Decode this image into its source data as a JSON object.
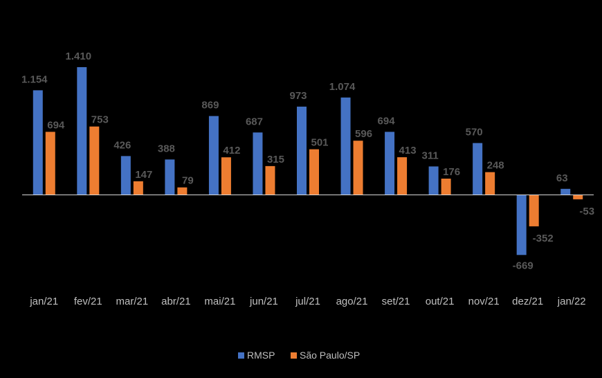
{
  "chart_data": {
    "type": "bar",
    "categories": [
      "jan/21",
      "fev/21",
      "mar/21",
      "abr/21",
      "mai/21",
      "jun/21",
      "jul/21",
      "ago/21",
      "set/21",
      "out/21",
      "nov/21",
      "dez/21",
      "jan/22"
    ],
    "series": [
      {
        "name": "RMSP",
        "color": "#4472C4",
        "values": [
          1154,
          1410,
          426,
          388,
          869,
          687,
          973,
          1074,
          694,
          311,
          570,
          -669,
          63
        ],
        "labels": [
          "1.154",
          "1.410",
          "426",
          "388",
          "869",
          "687",
          "973",
          "1.074",
          "694",
          "311",
          "570",
          "-669",
          "63"
        ]
      },
      {
        "name": "São Paulo/SP",
        "color": "#ED7D31",
        "values": [
          694,
          753,
          147,
          79,
          412,
          315,
          501,
          596,
          413,
          176,
          248,
          -352,
          -53
        ],
        "labels": [
          "694",
          "753",
          "147",
          "79",
          "412",
          "315",
          "501",
          "596",
          "413",
          "176",
          "248",
          "-352",
          "-53"
        ]
      }
    ],
    "title": "",
    "xlabel": "",
    "ylabel": "",
    "ylim": [
      -800,
      1500
    ],
    "grid": false,
    "legend_position": "bottom"
  }
}
